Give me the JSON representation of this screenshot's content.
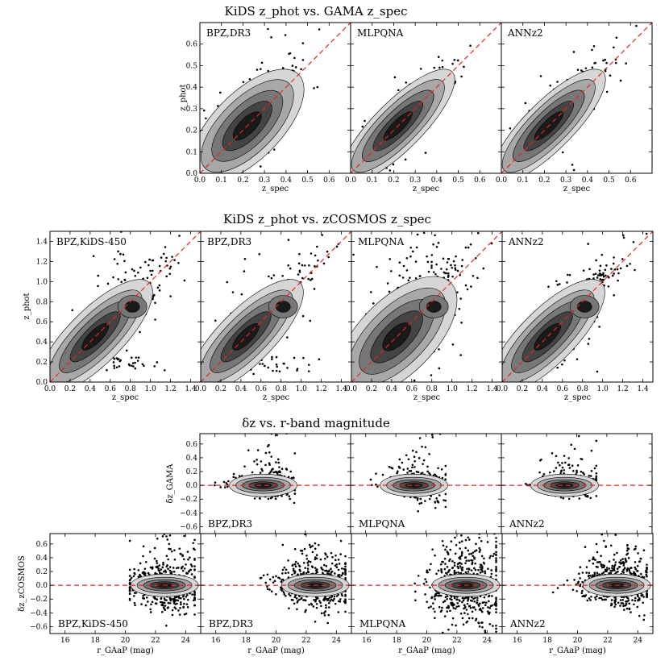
{
  "colors": {
    "refline": "#e8231f",
    "points": "#000000",
    "contour_levels": [
      "#1a1a1a",
      "#444444",
      "#777777",
      "#a8a8a8",
      "#d6d6d6"
    ]
  },
  "chart_data": [
    {
      "id": "gama",
      "type": "scatter",
      "title": "KiDS z_phot vs. GAMA z_spec",
      "xlabel": "z_spec",
      "ylabel": "z_phot",
      "xlim": [
        0.0,
        0.7
      ],
      "ylim": [
        0.0,
        0.7
      ],
      "xticks": [
        0.0,
        0.1,
        0.2,
        0.3,
        0.4,
        0.5,
        0.6
      ],
      "xtick_labels": [
        "0.0",
        "0.1",
        "0.2",
        "0.3",
        "0.4",
        "0.5",
        "0.6"
      ],
      "yticks": [
        0.0,
        0.1,
        0.2,
        0.3,
        0.4,
        0.5,
        0.6
      ],
      "ytick_labels": [
        "0.0",
        "0.1",
        "0.2",
        "0.3",
        "0.4",
        "0.5",
        "0.6"
      ],
      "reference_line": "y = x",
      "panels": [
        "BPZ,DR3",
        "MLPQNA",
        "ANNz2"
      ]
    },
    {
      "id": "cosmos",
      "type": "scatter",
      "title": "KiDS z_phot vs. zCOSMOS z_spec",
      "xlabel": "z_spec",
      "ylabel": "z_phot",
      "xlim": [
        0.0,
        1.5
      ],
      "ylim": [
        0.0,
        1.5
      ],
      "xticks": [
        0.0,
        0.2,
        0.4,
        0.6,
        0.8,
        1.0,
        1.2,
        1.4
      ],
      "xtick_labels": [
        "0.0",
        "0.2",
        "0.4",
        "0.6",
        "0.8",
        "1.0",
        "1.2",
        "1.4"
      ],
      "yticks": [
        0.0,
        0.2,
        0.4,
        0.6,
        0.8,
        1.0,
        1.2,
        1.4
      ],
      "ytick_labels": [
        "0.0",
        "0.2",
        "0.4",
        "0.6",
        "0.8",
        "1.0",
        "1.2",
        "1.4"
      ],
      "reference_line": "y = x",
      "panels": [
        "BPZ,KiDS-450",
        "BPZ,DR3",
        "MLPQNA",
        "ANNz2"
      ]
    },
    {
      "id": "residuals",
      "type": "scatter",
      "title": "δz vs. r-band magnitude",
      "xlabel": "r_GAaP (mag)",
      "ylabel_gama": "δz_GAMA",
      "ylabel_cosmos": "δz_zCOSMOS",
      "xlim": [
        15,
        25
      ],
      "ylim": [
        -0.7,
        0.75
      ],
      "xticks": [
        16,
        18,
        20,
        22,
        24
      ],
      "xtick_labels": [
        "16",
        "18",
        "20",
        "22",
        "24"
      ],
      "yticks": [
        -0.6,
        -0.4,
        -0.2,
        0.0,
        0.2,
        0.4,
        0.6
      ],
      "ytick_labels": [
        "−0.6",
        "−0.4",
        "−0.2",
        "0.0",
        "0.2",
        "0.4",
        "0.6"
      ],
      "reference_line": "y = 0",
      "gama_panels": [
        "BPZ,DR3",
        "MLPQNA",
        "ANNz2"
      ],
      "cosmos_panels": [
        "BPZ,KiDS-450",
        "BPZ,DR3",
        "MLPQNA",
        "ANNz2"
      ]
    }
  ]
}
